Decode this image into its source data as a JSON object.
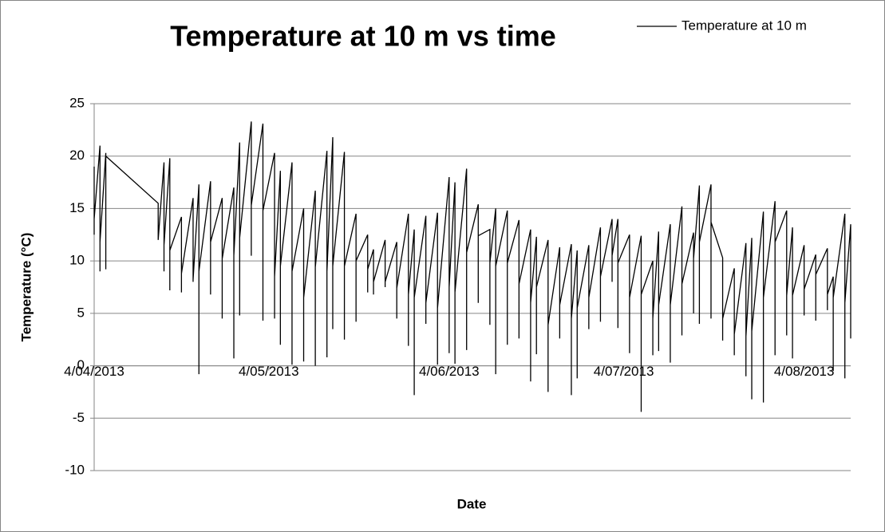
{
  "chart_data": {
    "type": "line",
    "title": "Temperature at 10 m vs time",
    "x_label": "Date",
    "y_label": "Temperature (°C)",
    "x": [
      "2013-04-04",
      "2013-04-04",
      "2013-04-04",
      "2013-04-05",
      "2013-04-05",
      "2013-04-05",
      "2013-04-06",
      "2013-04-06",
      "2013-04-06",
      "2013-04-15",
      "2013-04-15",
      "2013-04-15",
      "2013-04-16",
      "2013-04-16",
      "2013-04-16",
      "2013-04-17",
      "2013-04-17",
      "2013-04-17",
      "2013-04-19",
      "2013-04-19",
      "2013-04-19",
      "2013-04-21",
      "2013-04-21",
      "2013-04-21",
      "2013-04-22",
      "2013-04-22",
      "2013-04-22",
      "2013-04-24",
      "2013-04-24",
      "2013-04-24",
      "2013-04-26",
      "2013-04-26",
      "2013-04-26",
      "2013-04-28",
      "2013-04-28",
      "2013-04-28",
      "2013-04-29",
      "2013-04-29",
      "2013-04-29",
      "2013-05-01",
      "2013-05-01",
      "2013-05-01",
      "2013-05-03",
      "2013-05-03",
      "2013-05-03",
      "2013-05-05",
      "2013-05-05",
      "2013-05-05",
      "2013-05-06",
      "2013-05-06",
      "2013-05-06",
      "2013-05-08",
      "2013-05-08",
      "2013-05-08",
      "2013-05-10",
      "2013-05-10",
      "2013-05-10",
      "2013-05-12",
      "2013-05-12",
      "2013-05-12",
      "2013-05-14",
      "2013-05-14",
      "2013-05-14",
      "2013-05-15",
      "2013-05-15",
      "2013-05-15",
      "2013-05-17",
      "2013-05-17",
      "2013-05-17",
      "2013-05-19",
      "2013-05-19",
      "2013-05-19",
      "2013-05-21",
      "2013-05-21",
      "2013-05-21",
      "2013-05-22",
      "2013-05-22",
      "2013-05-22",
      "2013-05-24",
      "2013-05-24",
      "2013-05-24",
      "2013-05-26",
      "2013-05-26",
      "2013-05-26",
      "2013-05-28",
      "2013-05-28",
      "2013-05-28",
      "2013-05-29",
      "2013-05-29",
      "2013-05-29",
      "2013-05-31",
      "2013-05-31",
      "2013-05-31",
      "2013-06-02",
      "2013-06-02",
      "2013-06-02",
      "2013-06-04",
      "2013-06-04",
      "2013-06-04",
      "2013-06-05",
      "2013-06-05",
      "2013-06-05",
      "2013-06-07",
      "2013-06-07",
      "2013-06-07",
      "2013-06-09",
      "2013-06-09",
      "2013-06-09",
      "2013-06-11",
      "2013-06-11",
      "2013-06-11",
      "2013-06-12",
      "2013-06-12",
      "2013-06-12",
      "2013-06-14",
      "2013-06-14",
      "2013-06-14",
      "2013-06-16",
      "2013-06-16",
      "2013-06-16",
      "2013-06-18",
      "2013-06-18",
      "2013-06-18",
      "2013-06-19",
      "2013-06-19",
      "2013-06-19",
      "2013-06-21",
      "2013-06-21",
      "2013-06-21",
      "2013-06-23",
      "2013-06-23",
      "2013-06-23",
      "2013-06-25",
      "2013-06-25",
      "2013-06-25",
      "2013-06-26",
      "2013-06-26",
      "2013-06-26",
      "2013-06-28",
      "2013-06-28",
      "2013-06-28",
      "2013-06-30",
      "2013-06-30",
      "2013-06-30",
      "2013-07-02",
      "2013-07-02",
      "2013-07-02",
      "2013-07-03",
      "2013-07-03",
      "2013-07-03",
      "2013-07-05",
      "2013-07-05",
      "2013-07-05",
      "2013-07-07",
      "2013-07-07",
      "2013-07-07",
      "2013-07-09",
      "2013-07-09",
      "2013-07-09",
      "2013-07-10",
      "2013-07-10",
      "2013-07-10",
      "2013-07-12",
      "2013-07-12",
      "2013-07-12",
      "2013-07-14",
      "2013-07-14",
      "2013-07-14",
      "2013-07-16",
      "2013-07-16",
      "2013-07-16",
      "2013-07-17",
      "2013-07-17",
      "2013-07-17",
      "2013-07-19",
      "2013-07-19",
      "2013-07-19",
      "2013-07-21",
      "2013-07-21",
      "2013-07-21",
      "2013-07-23",
      "2013-07-23",
      "2013-07-23",
      "2013-07-25",
      "2013-07-25",
      "2013-07-25",
      "2013-07-26",
      "2013-07-26",
      "2013-07-26",
      "2013-07-28",
      "2013-07-28",
      "2013-07-28",
      "2013-07-30",
      "2013-07-30",
      "2013-07-30",
      "2013-08-01",
      "2013-08-01",
      "2013-08-01",
      "2013-08-02",
      "2013-08-02",
      "2013-08-02",
      "2013-08-04",
      "2013-08-04",
      "2013-08-04",
      "2013-08-06",
      "2013-08-06",
      "2013-08-06",
      "2013-08-08",
      "2013-08-08",
      "2013-08-08",
      "2013-08-09",
      "2013-08-09",
      "2013-08-09",
      "2013-08-11",
      "2013-08-11",
      "2013-08-11",
      "2013-08-12",
      "2013-08-12",
      "2013-08-12"
    ],
    "series": [
      {
        "name": "Temperature at 10 m",
        "color": "#000000",
        "values": [
          19,
          12.5,
          14,
          21,
          9,
          11.8,
          20.3,
          9.2,
          20,
          15.5,
          12,
          12,
          19.4,
          9,
          11.5,
          19.8,
          7.2,
          11,
          14.2,
          7,
          8.8,
          16,
          8,
          8.2,
          17.3,
          -0.8,
          9,
          17.6,
          6.8,
          11.8,
          16,
          4.5,
          10.2,
          17,
          0.7,
          10.5,
          21.3,
          4.8,
          12.2,
          23.3,
          10.5,
          15.3,
          23.1,
          4.3,
          14.8,
          20.3,
          4.5,
          8.5,
          18.6,
          2,
          9.5,
          19.4,
          0.1,
          9,
          15,
          0.4,
          6.5,
          16.7,
          0,
          9.4,
          20.5,
          0.8,
          9,
          21.8,
          3.5,
          9.5,
          20.4,
          2.5,
          9.5,
          14.5,
          4.2,
          10,
          12.5,
          7,
          9.2,
          11.1,
          6.8,
          8,
          12,
          7.5,
          8,
          11.8,
          4.5,
          7.4,
          14.5,
          1.9,
          6.8,
          13,
          -2.8,
          6.5,
          14.3,
          4,
          6,
          14.6,
          0.1,
          5.5,
          18,
          1.2,
          7.5,
          17.5,
          0.2,
          7,
          18.8,
          1.5,
          10.8,
          15.4,
          6,
          12.4,
          13,
          3.9,
          9.8,
          15,
          -0.8,
          9.5,
          14.8,
          2,
          9.8,
          13.9,
          2.6,
          7.8,
          13,
          -1.5,
          6,
          12.3,
          1.1,
          7.5,
          12,
          -2.5,
          3.9,
          11.3,
          2.6,
          5.8,
          11.6,
          -2.8,
          4.5,
          11,
          -1.2,
          5.5,
          11.5,
          3.5,
          6.5,
          13.2,
          4.2,
          8.5,
          14,
          8,
          10.5,
          14,
          3.6,
          9.8,
          12.5,
          1.2,
          6.5,
          12.4,
          -4.4,
          6.8,
          10,
          1,
          4.5,
          12.8,
          1.4,
          5.8,
          13.5,
          0.3,
          5.8,
          15.2,
          2.9,
          7.8,
          12.7,
          5,
          10.2,
          17.2,
          4,
          11.8,
          17.3,
          4.5,
          13.7,
          10.3,
          2.4,
          4.5,
          9.3,
          1,
          3,
          11.7,
          -1,
          2.8,
          12.2,
          -3.2,
          3.3,
          14.7,
          -3.5,
          6.5,
          15.7,
          1,
          11.8,
          14.8,
          2.9,
          6.7,
          13.2,
          0.7,
          6.7,
          11.5,
          4.8,
          7.3,
          10.6,
          4.3,
          8.7,
          11.2,
          5.3,
          6.8,
          8.5,
          -0.5,
          6.5,
          14.5,
          -1.2,
          6,
          13.5,
          2.6,
          6
        ]
      }
    ],
    "xlim": [
      "2013-04-04",
      "2013-08-12"
    ],
    "xticks": [
      {
        "value": "2013-04-04",
        "label": "4/04/2013"
      },
      {
        "value": "2013-05-04",
        "label": "4/05/2013"
      },
      {
        "value": "2013-06-04",
        "label": "4/06/2013"
      },
      {
        "value": "2013-07-04",
        "label": "4/07/2013"
      },
      {
        "value": "2013-08-04",
        "label": "4/08/2013"
      }
    ],
    "ylim": [
      -10,
      25
    ],
    "yticks": [
      -10,
      -5,
      0,
      5,
      10,
      15,
      20,
      25
    ],
    "grid": true,
    "legend": "top-right"
  }
}
